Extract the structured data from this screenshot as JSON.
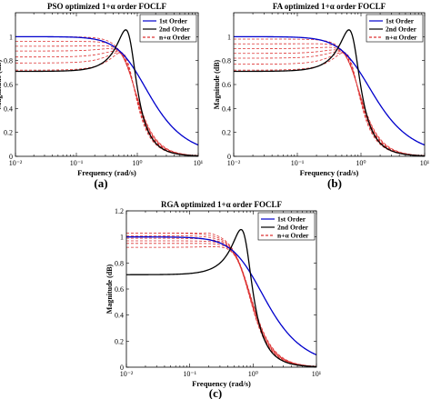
{
  "chart_data": [
    {
      "id": "a",
      "type": "line",
      "panel_label": "(a)",
      "title": "PSO optimized 1+α order FOCLF",
      "xlabel": "Frequency (rad/s)",
      "ylabel": "Magnitude (dB)",
      "xscale": "log",
      "xlim": [
        0.01,
        10
      ],
      "ylim": [
        0,
        1.2
      ],
      "xticks": [
        "10⁻²",
        "10⁻¹",
        "10⁰",
        "10¹"
      ],
      "yticks": [
        "0",
        "0.2",
        "0.4",
        "0.6",
        "0.8",
        "1"
      ],
      "legend": {
        "position": "top-right",
        "entries": [
          {
            "label": "1st Order",
            "color": "#0000cc",
            "style": "solid"
          },
          {
            "label": "2nd Order",
            "color": "#000000",
            "style": "solid"
          },
          {
            "label": "n+α Order",
            "color": "#dd3333",
            "style": "dashed"
          }
        ]
      },
      "series": [
        {
          "name": "1st Order",
          "kind": "first",
          "low": 1.0,
          "high_end": 0.1,
          "wc": 1.0
        },
        {
          "name": "2nd Order",
          "kind": "second",
          "low": 0.71,
          "peak": 1.0,
          "wn": 0.75
        },
        {
          "name": "n+α Order",
          "kind": "family",
          "lows": [
            0.72,
            0.78,
            0.83,
            0.88,
            0.92,
            0.96,
            1.0
          ]
        }
      ]
    },
    {
      "id": "b",
      "type": "line",
      "panel_label": "(b)",
      "title": "FA optimized 1+α order FOCLF",
      "xlabel": "Frequency (rad/s)",
      "ylabel": "Magnitude (dB)",
      "xscale": "log",
      "xlim": [
        0.01,
        10
      ],
      "ylim": [
        0,
        1.2
      ],
      "xticks": [
        "10⁻²",
        "10⁻¹",
        "10⁰",
        "10¹"
      ],
      "yticks": [
        "0",
        "0.2",
        "0.4",
        "0.6",
        "0.8",
        "1"
      ],
      "legend": {
        "position": "top-right",
        "entries": [
          {
            "label": "1st Order",
            "color": "#0000cc",
            "style": "solid"
          },
          {
            "label": "2nd Order",
            "color": "#000000",
            "style": "solid"
          },
          {
            "label": "n+α Order",
            "color": "#dd3333",
            "style": "dashed"
          }
        ]
      },
      "series": [
        {
          "name": "1st Order",
          "kind": "first",
          "low": 1.0,
          "high_end": 0.1,
          "wc": 1.0
        },
        {
          "name": "2nd Order",
          "kind": "second",
          "low": 0.71,
          "peak": 1.0,
          "wn": 0.75
        },
        {
          "name": "n+α Order",
          "kind": "family",
          "lows": [
            0.72,
            0.77,
            0.82,
            0.86,
            0.9,
            0.94,
            0.98
          ]
        }
      ]
    },
    {
      "id": "c",
      "type": "line",
      "panel_label": "(c)",
      "title": "RGA optimized 1+α order FOCLF",
      "xlabel": "Frequency (rad/s)",
      "ylabel": "Magnitude (dB)",
      "xscale": "log",
      "xlim": [
        0.01,
        10
      ],
      "ylim": [
        0,
        1.2
      ],
      "xticks": [
        "10⁻²",
        "10⁻¹",
        "10⁰",
        "10¹"
      ],
      "yticks": [
        "0",
        "0.2",
        "0.4",
        "0.6",
        "0.8",
        "1",
        "1.2"
      ],
      "legend": {
        "position": "top-right",
        "entries": [
          {
            "label": "1st Order",
            "color": "#0000cc",
            "style": "solid"
          },
          {
            "label": "2nd Order",
            "color": "#000000",
            "style": "solid"
          },
          {
            "label": "n+α Order",
            "color": "#dd3333",
            "style": "dashed"
          }
        ]
      },
      "series": [
        {
          "name": "1st Order",
          "kind": "first",
          "low": 1.0,
          "high_end": 0.1,
          "wc": 1.0
        },
        {
          "name": "2nd Order",
          "kind": "second",
          "low": 0.71,
          "peak": 1.0,
          "wn": 0.75
        },
        {
          "name": "n+α Order",
          "kind": "family",
          "lows": [
            0.92,
            0.95,
            0.97,
            0.99,
            1.01,
            1.03,
            1.05
          ]
        }
      ]
    }
  ]
}
